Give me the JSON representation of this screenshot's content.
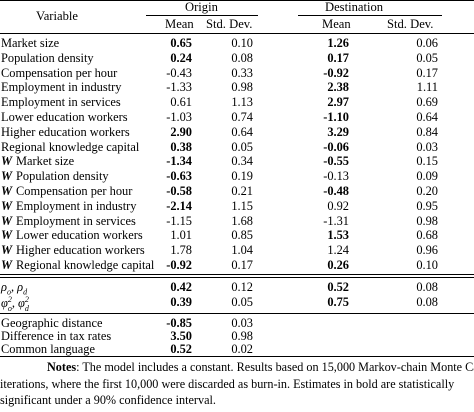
{
  "header": {
    "variable_label": "Variable",
    "origin_label": "Origin",
    "destination_label": "Destination",
    "mean_label": "Mean",
    "std_label": "Std. Dev."
  },
  "rows": [
    {
      "label": "Market size",
      "w": false,
      "om": "0.65",
      "om_bold": true,
      "os": "0.10",
      "dm": "1.26",
      "dm_bold": true,
      "ds": "0.06"
    },
    {
      "label": "Population density",
      "w": false,
      "om": "0.24",
      "om_bold": true,
      "os": "0.08",
      "dm": "0.17",
      "dm_bold": true,
      "ds": "0.05"
    },
    {
      "label": "Compensation per hour",
      "w": false,
      "om": "-0.43",
      "om_bold": false,
      "os": "0.33",
      "dm": "-0.92",
      "dm_bold": true,
      "ds": "0.17"
    },
    {
      "label": "Employment in industry",
      "w": false,
      "om": "-1.33",
      "om_bold": false,
      "os": "0.98",
      "dm": "2.38",
      "dm_bold": true,
      "ds": "1.11"
    },
    {
      "label": "Employment in services",
      "w": false,
      "om": "0.61",
      "om_bold": false,
      "os": "1.13",
      "dm": "2.97",
      "dm_bold": true,
      "ds": "0.69"
    },
    {
      "label": "Lower education workers",
      "w": false,
      "om": "-1.03",
      "om_bold": false,
      "os": "0.74",
      "dm": "-1.10",
      "dm_bold": true,
      "ds": "0.64"
    },
    {
      "label": "Higher education workers",
      "w": false,
      "om": "2.90",
      "om_bold": true,
      "os": "0.64",
      "dm": "3.29",
      "dm_bold": true,
      "ds": "0.84"
    },
    {
      "label": "Regional knowledge capital",
      "w": false,
      "om": "0.38",
      "om_bold": true,
      "os": "0.05",
      "dm": "-0.06",
      "dm_bold": true,
      "ds": "0.03"
    },
    {
      "label": "Market size",
      "w": true,
      "om": "-1.34",
      "om_bold": true,
      "os": "0.34",
      "dm": "-0.55",
      "dm_bold": true,
      "ds": "0.15"
    },
    {
      "label": "Population density",
      "w": true,
      "om": "-0.63",
      "om_bold": true,
      "os": "0.19",
      "dm": "-0.13",
      "dm_bold": false,
      "ds": "0.09"
    },
    {
      "label": "Compensation per hour",
      "w": true,
      "om": "-0.58",
      "om_bold": true,
      "os": "0.21",
      "dm": "-0.48",
      "dm_bold": true,
      "ds": "0.20"
    },
    {
      "label": "Employment in industry",
      "w": true,
      "om": "-2.14",
      "om_bold": true,
      "os": "1.15",
      "dm": "0.92",
      "dm_bold": false,
      "ds": "0.95"
    },
    {
      "label": "Employment in services",
      "w": true,
      "om": "-1.15",
      "om_bold": false,
      "os": "1.68",
      "dm": "-1.31",
      "dm_bold": false,
      "ds": "0.98"
    },
    {
      "label": "Lower education workers",
      "w": true,
      "om": "1.01",
      "om_bold": false,
      "os": "0.85",
      "dm": "1.53",
      "dm_bold": true,
      "ds": "0.68"
    },
    {
      "label": "Higher education workers",
      "w": true,
      "om": "1.78",
      "om_bold": false,
      "os": "1.04",
      "dm": "1.24",
      "dm_bold": false,
      "ds": "0.96"
    },
    {
      "label": "Regional knowledge capital",
      "w": true,
      "om": "-0.92",
      "om_bold": true,
      "os": "0.17",
      "dm": "0.26",
      "dm_bold": true,
      "ds": "0.10"
    }
  ],
  "w_prefix": "W",
  "spatial": [
    {
      "label": "ρ_o, ρ_d",
      "om": "0.42",
      "os": "0.12",
      "dm": "0.52",
      "ds": "0.08"
    },
    {
      "label": "φ²_o, φ²_d",
      "om": "0.39",
      "os": "0.05",
      "dm": "0.75",
      "ds": "0.08"
    }
  ],
  "pair_rows": [
    {
      "label": "Geographic distance",
      "om": "-0.85",
      "os": "0.03"
    },
    {
      "label": "Difference in tax rates",
      "om": "3.50",
      "os": "0.98"
    },
    {
      "label": "Common language",
      "om": "0.52",
      "os": "0.02"
    }
  ],
  "notes": {
    "label": "Notes",
    "line1": ": The model includes a constant.  Results based on 15,000 Markov-chain Monte Carlo",
    "line2": "iterations, where the first 10,000 were discarded as burn-in.  Estimates in bold are statistically",
    "line3": "significant under a 90% confidence interval."
  }
}
